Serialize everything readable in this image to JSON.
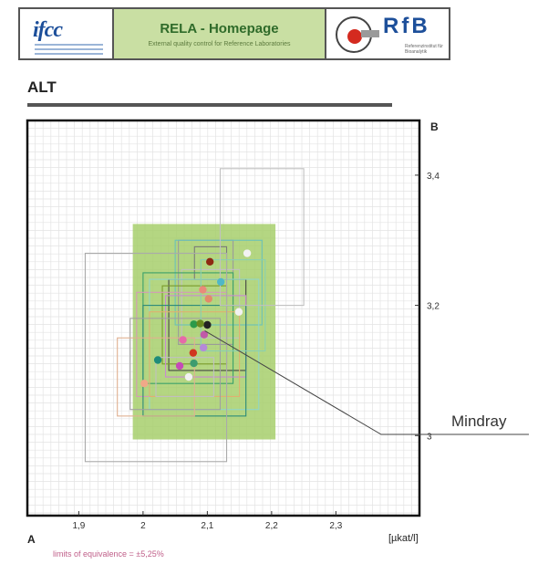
{
  "header": {
    "left_logo_text": "ifcc",
    "center_title": "RELA - Homepage",
    "center_subtitle": "External quality control for Reference Laboratories",
    "right_logo_text": "RfB",
    "right_logo_small": "Referenzinstitut für Bioanalytik"
  },
  "chart_data": {
    "type": "scatter",
    "title": "ALT",
    "x_axis_letter": "A",
    "y_axis_letter": "B",
    "unit": "[µkat/l]",
    "xlim": [
      1.82,
      2.43
    ],
    "ylim": [
      2.877,
      3.484
    ],
    "x_ticks": [
      1.9,
      2,
      2.1,
      2.2,
      2.3
    ],
    "x_tick_labels": [
      "1,9",
      "2",
      "2,1",
      "2,2",
      "2,3"
    ],
    "y_ticks": [
      3,
      3.2,
      3.4
    ],
    "y_tick_labels": [
      "3",
      "3,2",
      "3,4"
    ],
    "grid": true,
    "equivalence_region": {
      "x": [
        1.984,
        2.206
      ],
      "y": [
        2.994,
        3.325
      ]
    },
    "footer_note": "limits of equivalence = ±5,25%",
    "points": [
      {
        "x": 2.104,
        "y": 3.267,
        "color": "#8e2a12",
        "x_range": [
          2.08,
          2.13
        ],
        "y_range": [
          3.24,
          3.29
        ],
        "box_color": "#7a7a7a"
      },
      {
        "x": 2.093,
        "y": 3.224,
        "color": "#e88a7a",
        "x_range": [
          2.055,
          2.14
        ],
        "y_range": [
          3.14,
          3.3
        ],
        "box_color": "#9a9a9a"
      },
      {
        "x": 2.102,
        "y": 3.21,
        "color": "#e2896a",
        "x_range": [
          2.06,
          2.15
        ],
        "y_range": [
          3.15,
          3.255
        ],
        "box_color": "#c0c0c0"
      },
      {
        "x": 2.121,
        "y": 3.236,
        "color": "#4fb7c7",
        "x_range": [
          2.05,
          2.185
        ],
        "y_range": [
          3.17,
          3.3
        ],
        "box_color": "#6bc2b8"
      },
      {
        "x": 2.1,
        "y": 3.17,
        "color": "#222222",
        "x_range": [
          2.04,
          2.16
        ],
        "y_range": [
          3.1,
          3.24
        ],
        "box_color": "#444444"
      },
      {
        "x": 2.079,
        "y": 3.171,
        "color": "#2c9a4a",
        "x_range": [
          2.0,
          2.14
        ],
        "y_range": [
          3.08,
          3.25
        ],
        "box_color": "#3aa06a"
      },
      {
        "x": 2.089,
        "y": 3.172,
        "color": "#6a8a1f",
        "x_range": [
          2.03,
          2.13
        ],
        "y_range": [
          3.11,
          3.23
        ],
        "box_color": "#7a9a2a"
      },
      {
        "x": 2.095,
        "y": 3.155,
        "color": "#c05aa8",
        "x_range": [
          2.035,
          2.16
        ],
        "y_range": [
          3.09,
          3.215
        ],
        "box_color": "#c98ad0"
      },
      {
        "x": 2.062,
        "y": 3.147,
        "color": "#e66aa8",
        "x_range": [
          1.99,
          2.13
        ],
        "y_range": [
          3.06,
          3.22
        ],
        "box_color": "#d59ab8"
      },
      {
        "x": 2.094,
        "y": 3.135,
        "color": "#b58ad8",
        "x_range": [
          2.01,
          2.18
        ],
        "y_range": [
          3.04,
          3.24
        ],
        "box_color": "#8fd6c8"
      },
      {
        "x": 2.078,
        "y": 3.127,
        "color": "#d0351e",
        "x_range": [
          2.01,
          2.15
        ],
        "y_range": [
          3.06,
          3.19
        ],
        "box_color": "#e0b070"
      },
      {
        "x": 2.079,
        "y": 3.111,
        "color": "#3c9c6f",
        "x_range": [
          2.0,
          2.16
        ],
        "y_range": [
          3.03,
          3.2
        ],
        "box_color": "#2a8a7a"
      },
      {
        "x": 2.023,
        "y": 3.116,
        "color": "#1f8c7a",
        "x_range": [
          1.91,
          2.13
        ],
        "y_range": [
          2.96,
          3.28
        ],
        "box_color": "#aaaaaa"
      },
      {
        "x": 2.057,
        "y": 3.107,
        "color": "#c54bb7",
        "x_range": [
          1.98,
          2.12
        ],
        "y_range": [
          3.04,
          3.18
        ],
        "box_color": "#a0a0a0"
      },
      {
        "x": 2.002,
        "y": 3.08,
        "color": "#f0a888",
        "x_range": [
          1.96,
          2.08
        ],
        "y_range": [
          3.03,
          3.15
        ],
        "box_color": "#e0b090"
      },
      {
        "x": 2.149,
        "y": 3.19,
        "color": "#f2f2f2",
        "x_range": [
          2.09,
          2.19
        ],
        "y_range": [
          3.13,
          3.27
        ],
        "box_color": "#8ad0b0"
      },
      {
        "x": 2.071,
        "y": 3.09,
        "color": "#f2f2f2",
        "x_range": [
          2.02,
          2.11
        ],
        "y_range": [
          3.06,
          3.12
        ],
        "box_color": "#c0c0c0"
      },
      {
        "x": 2.162,
        "y": 3.28,
        "color": "#f2f2f2",
        "x_range": [
          2.12,
          2.25
        ],
        "y_range": [
          3.2,
          3.41
        ],
        "box_color": "#c0c0c0"
      }
    ],
    "annotation": {
      "label": "Mindray",
      "x": 2.096,
      "y": 3.161
    }
  }
}
